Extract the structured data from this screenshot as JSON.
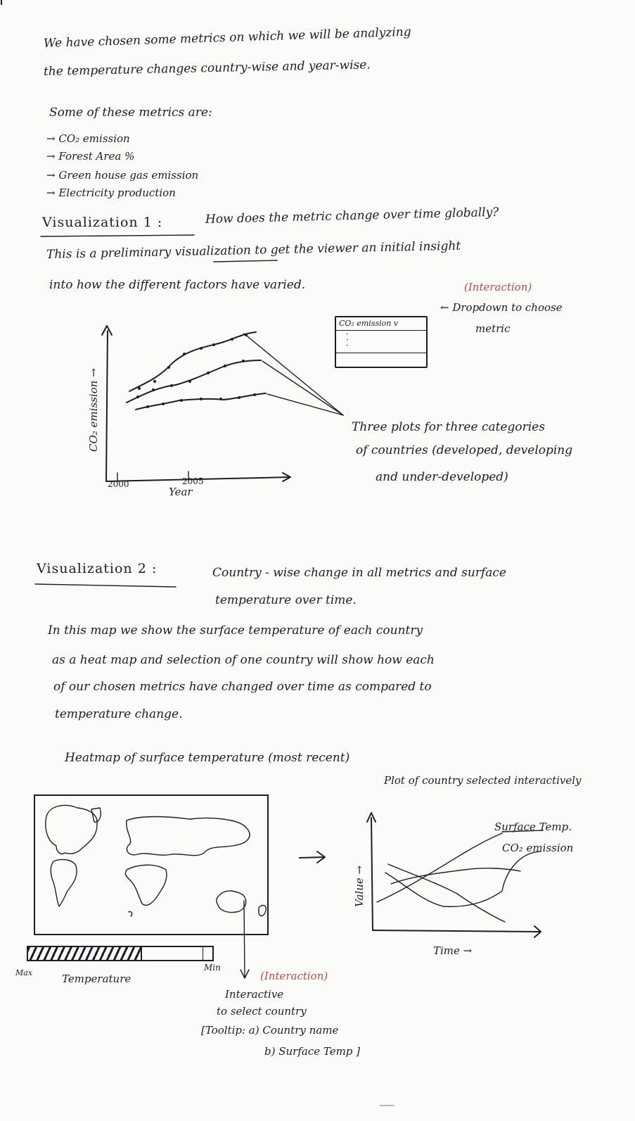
{
  "intro": {
    "line1": "We have chosen some metrics on which we will be analyzing",
    "line2": "the temperature changes country-wise and year-wise."
  },
  "metrics": {
    "heading": "Some of these metrics are:",
    "items": [
      "CO₂ emission",
      "Forest Area %",
      "Green house gas emission",
      "Electricity production"
    ],
    "arrow_glyph": "→"
  },
  "vis1": {
    "title": "Visualization 1 :",
    "question": "How does the metric change over time globally?",
    "desc_line1": "This is a preliminary visualization to get the viewer an initial insight",
    "desc_line2": "into how the different factors have varied.",
    "interaction_note": "(Interaction)",
    "dropdown_selected": "CO₂ emission v",
    "dropdown_note_line1": "← Dropdown to choose",
    "dropdown_note_line2": "metric",
    "ylabel": "CO₂ emission →",
    "xtick_1": "2000",
    "xtick_2": "2005",
    "xlabel": "Year",
    "plots_note_line1": "Three plots for three categories",
    "plots_note_line2": "of countries (developed, developing",
    "plots_note_line3": "and under-developed)"
  },
  "vis2": {
    "title": "Visualization 2 :",
    "subtitle_line1": "Country - wise change in all metrics and surface",
    "subtitle_line2": "temperature over time.",
    "para_line1": "In this map we show the surface temperature of each country",
    "para_line2": "as a heat map and selection of one country will show how each",
    "para_line3": "of our chosen metrics have changed over time as compared to",
    "para_line4": "temperature change.",
    "heatmap_title": "Heatmap of surface temperature (most recent)",
    "plot_title": "Plot of country selected interactively",
    "legend_1": "Surface Temp.",
    "legend_2": "CO₂ emission",
    "ylabel": "Value →",
    "xlabel": "Time →",
    "scale_max": "Max",
    "scale_min": "Min",
    "scale_label": "Temperature",
    "interaction_note": "(Interaction)",
    "select_line1": "Interactive",
    "select_line2": "to select country",
    "tooltip_line1": "[Tooltip: a) Country name",
    "tooltip_line2": "b) Surface Temp ]"
  },
  "colors": {
    "ink": "#1e1c26",
    "red_ink": "#c24a48",
    "paper": "#fbfbf9"
  }
}
